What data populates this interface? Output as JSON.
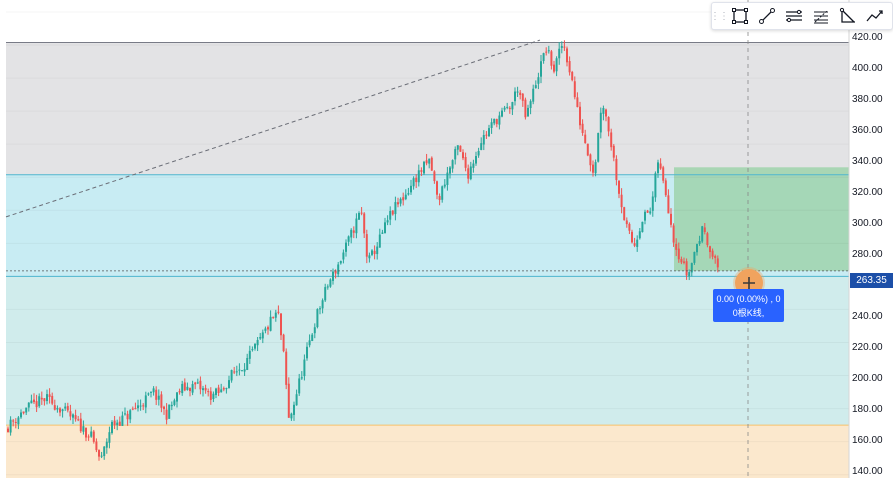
{
  "toolbar": {
    "tools": [
      {
        "name": "rectangle-tool-icon"
      },
      {
        "name": "trend-line-tool-icon"
      },
      {
        "name": "parallel-channel-tool-icon"
      },
      {
        "name": "fib-retracement-tool-icon"
      },
      {
        "name": "angle-tool-icon"
      },
      {
        "name": "path-tool-icon"
      }
    ]
  },
  "price_axis": {
    "ticks": [
      "420.00",
      "400.00",
      "380.00",
      "360.00",
      "340.00",
      "320.00",
      "300.00",
      "280.00",
      "240.00",
      "220.00",
      "200.00",
      "180.00",
      "160.00",
      "140.00"
    ],
    "current_price": "263.35"
  },
  "tooltip": {
    "line1": "0.00 (0.00%) , 0",
    "line2": "0根K线,"
  },
  "chart_data": {
    "type": "candlestick",
    "ylim": [
      138,
      423
    ],
    "last_price": 263.35,
    "levels": [
      {
        "value": 401.5,
        "color": "#787b86"
      },
      {
        "value": 321.5,
        "color": "#4fb6cf"
      },
      {
        "value": 260.0,
        "color": "#4fb6cf"
      },
      {
        "value": 170.0,
        "color": "#f5c16c"
      }
    ],
    "zones": [
      {
        "from": 321.5,
        "to": 401.5,
        "color": "#e3e3e5"
      },
      {
        "from": 260.0,
        "to": 321.5,
        "color": "#c8ecf3"
      },
      {
        "from": 170.0,
        "to": 260.0,
        "color": "#d0ecec"
      },
      {
        "from": 138.0,
        "to": 170.0,
        "color": "#fbe8cd"
      }
    ],
    "position_box": {
      "from": 263.35,
      "to": 326.0,
      "color": "#9fd3ac"
    },
    "anchors": [
      [
        0,
        168
      ],
      [
        20,
        180
      ],
      [
        40,
        186
      ],
      [
        55,
        180
      ],
      [
        70,
        172
      ],
      [
        85,
        163
      ],
      [
        95,
        148
      ],
      [
        105,
        170
      ],
      [
        120,
        175
      ],
      [
        135,
        183
      ],
      [
        148,
        190
      ],
      [
        160,
        176
      ],
      [
        175,
        192
      ],
      [
        190,
        194
      ],
      [
        205,
        188
      ],
      [
        215,
        190
      ],
      [
        225,
        200
      ],
      [
        240,
        208
      ],
      [
        255,
        222
      ],
      [
        265,
        233
      ],
      [
        272,
        238
      ],
      [
        278,
        210
      ],
      [
        283,
        172
      ],
      [
        290,
        188
      ],
      [
        300,
        212
      ],
      [
        310,
        235
      ],
      [
        322,
        255
      ],
      [
        333,
        268
      ],
      [
        345,
        285
      ],
      [
        355,
        300
      ],
      [
        362,
        268
      ],
      [
        372,
        280
      ],
      [
        385,
        298
      ],
      [
        400,
        310
      ],
      [
        412,
        322
      ],
      [
        424,
        330
      ],
      [
        432,
        305
      ],
      [
        440,
        320
      ],
      [
        452,
        338
      ],
      [
        462,
        322
      ],
      [
        475,
        342
      ],
      [
        490,
        355
      ],
      [
        505,
        363
      ],
      [
        512,
        375
      ],
      [
        520,
        355
      ],
      [
        530,
        378
      ],
      [
        540,
        398
      ],
      [
        548,
        385
      ],
      [
        557,
        402
      ],
      [
        565,
        382
      ],
      [
        572,
        358
      ],
      [
        580,
        340
      ],
      [
        588,
        322
      ],
      [
        596,
        368
      ],
      [
        604,
        345
      ],
      [
        612,
        315
      ],
      [
        620,
        290
      ],
      [
        628,
        278
      ],
      [
        636,
        295
      ],
      [
        645,
        300
      ],
      [
        652,
        330
      ],
      [
        660,
        310
      ],
      [
        668,
        282
      ],
      [
        675,
        270
      ],
      [
        682,
        260
      ],
      [
        690,
        278
      ],
      [
        698,
        290
      ],
      [
        706,
        272
      ],
      [
        714,
        263.35
      ]
    ]
  }
}
